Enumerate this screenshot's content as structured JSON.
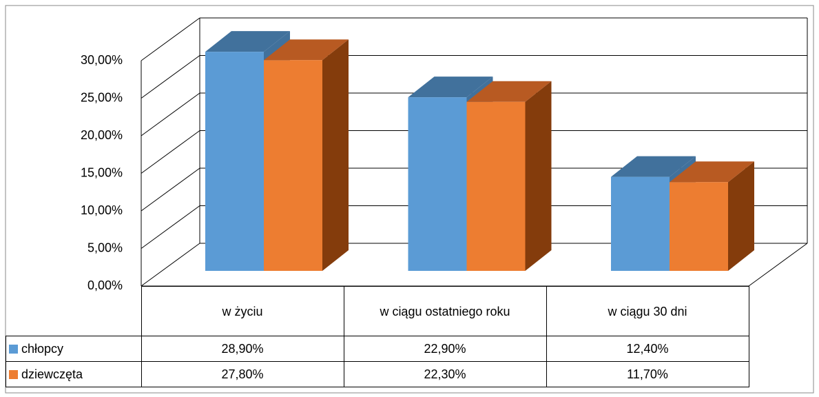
{
  "chart_data": {
    "type": "bar3d",
    "categories": [
      "w życiu",
      "w ciągu ostatniego roku",
      "w ciągu 30 dni"
    ],
    "series": [
      {
        "name": "chłopcy",
        "color": "#5b9bd5",
        "side": "#41719c",
        "values": [
          28.9,
          22.9,
          12.4
        ],
        "value_labels": [
          "28,90%",
          "22,90%",
          "12,40%"
        ]
      },
      {
        "name": "dziewczęta",
        "color": "#ed7d31",
        "side": "#843c0c",
        "top": "#b85a22",
        "values": [
          27.8,
          22.3,
          11.7
        ],
        "value_labels": [
          "27,80%",
          "22,30%",
          "11,70%"
        ]
      }
    ],
    "ylim": [
      0,
      30
    ],
    "yticks": [
      {
        "value": 0,
        "label": "0,00%"
      },
      {
        "value": 5,
        "label": "5,00%"
      },
      {
        "value": 10,
        "label": "10,00%"
      },
      {
        "value": 15,
        "label": "15,00%"
      },
      {
        "value": 20,
        "label": "20,00%"
      },
      {
        "value": 25,
        "label": "25,00%"
      },
      {
        "value": 30,
        "label": "30,00%"
      }
    ],
    "grid": true
  }
}
